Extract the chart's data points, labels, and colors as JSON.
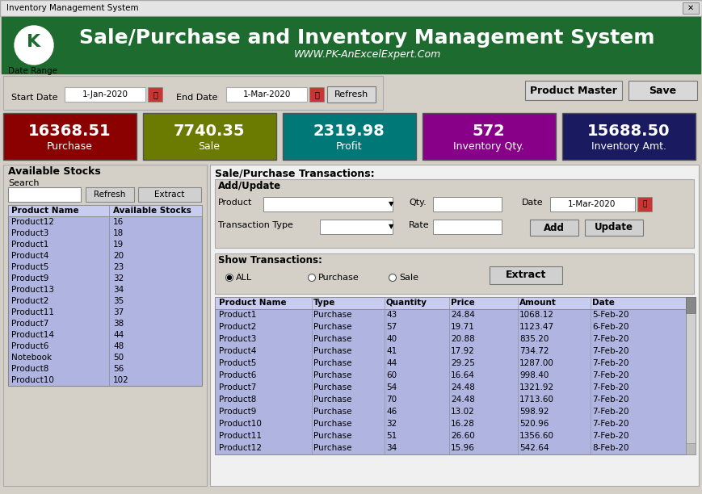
{
  "title": "Sale/Purchase and Inventory Management System",
  "subtitle": "WWW.PK-AnExcelExpert.Com",
  "window_title": "Inventory Management System",
  "header_bg": "#1e6b30",
  "bg_color": "#d4d0c8",
  "stats": [
    {
      "value": "16368.51",
      "label": "Purchase",
      "color": "#8b0000"
    },
    {
      "value": "7740.35",
      "label": "Sale",
      "color": "#6b7a00"
    },
    {
      "value": "2319.98",
      "label": "Profit",
      "color": "#007878"
    },
    {
      "value": "572",
      "label": "Inventory Qty.",
      "color": "#880088"
    },
    {
      "value": "15688.50",
      "label": "Inventory Amt.",
      "color": "#1a1a60"
    }
  ],
  "left_panel_title": "Available Stocks",
  "left_search_label": "Search",
  "left_table_headers": [
    "Product Name",
    "Available Stocks"
  ],
  "left_table_data": [
    [
      "Product12",
      "16"
    ],
    [
      "Product3",
      "18"
    ],
    [
      "Product1",
      "19"
    ],
    [
      "Product4",
      "20"
    ],
    [
      "Product5",
      "23"
    ],
    [
      "Product9",
      "32"
    ],
    [
      "Product13",
      "34"
    ],
    [
      "Product2",
      "35"
    ],
    [
      "Product11",
      "37"
    ],
    [
      "Product7",
      "38"
    ],
    [
      "Product14",
      "44"
    ],
    [
      "Product6",
      "48"
    ],
    [
      "Notebook",
      "50"
    ],
    [
      "Product8",
      "56"
    ],
    [
      "Product10",
      "102"
    ]
  ],
  "right_panel_title": "Sale/Purchase Transactions:",
  "right_sub_title": "Add/Update",
  "show_trans_title": "Show Transactions:",
  "radio_options": [
    "ALL",
    "Purchase",
    "Sale"
  ],
  "right_table_headers": [
    "Product Name",
    "Type",
    "Quantity",
    "Price",
    "Amount",
    "Date"
  ],
  "right_table_data": [
    [
      "Product1",
      "Purchase",
      "43",
      "24.84",
      "1068.12",
      "5-Feb-20"
    ],
    [
      "Product2",
      "Purchase",
      "57",
      "19.71",
      "1123.47",
      "6-Feb-20"
    ],
    [
      "Product3",
      "Purchase",
      "40",
      "20.88",
      "835.20",
      "7-Feb-20"
    ],
    [
      "Product4",
      "Purchase",
      "41",
      "17.92",
      "734.72",
      "7-Feb-20"
    ],
    [
      "Product5",
      "Purchase",
      "44",
      "29.25",
      "1287.00",
      "7-Feb-20"
    ],
    [
      "Product6",
      "Purchase",
      "60",
      "16.64",
      "998.40",
      "7-Feb-20"
    ],
    [
      "Product7",
      "Purchase",
      "54",
      "24.48",
      "1321.92",
      "7-Feb-20"
    ],
    [
      "Product8",
      "Purchase",
      "70",
      "24.48",
      "1713.60",
      "7-Feb-20"
    ],
    [
      "Product9",
      "Purchase",
      "46",
      "13.02",
      "598.92",
      "7-Feb-20"
    ],
    [
      "Product10",
      "Purchase",
      "32",
      "16.28",
      "520.96",
      "7-Feb-20"
    ],
    [
      "Product11",
      "Purchase",
      "51",
      "26.60",
      "1356.60",
      "7-Feb-20"
    ],
    [
      "Product12",
      "Purchase",
      "34",
      "15.96",
      "542.64",
      "8-Feb-20"
    ]
  ],
  "table_bg": "#b0b4e0",
  "table_header_bg": "#c8ccf0",
  "right_bg": "#f0f0f0"
}
